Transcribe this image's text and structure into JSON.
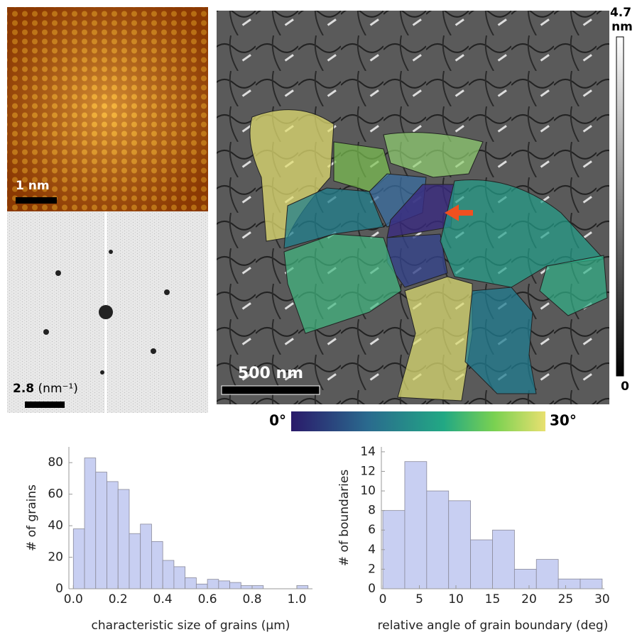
{
  "panels": {
    "atomic_scale_bar": "1 nm",
    "fft_scale_value": "2.8",
    "fft_scale_unit": "(nm⁻¹)",
    "afm_scale_bar": "500 nm",
    "height_bar_max": "4.7",
    "height_bar_unit": "nm",
    "height_bar_min": "0",
    "angle_bar_min": "0°",
    "angle_bar_max": "30°"
  },
  "chart_data": [
    {
      "type": "histogram",
      "xlabel": "characteristic size of grains (μm)",
      "ylabel": "# of grains",
      "bins": [
        0,
        0.05,
        0.1,
        0.15,
        0.2,
        0.25,
        0.3,
        0.35,
        0.4,
        0.45,
        0.5,
        0.55,
        0.6,
        0.65,
        0.7,
        0.75,
        0.8,
        0.85,
        0.9,
        0.95,
        1.0,
        1.05
      ],
      "counts": [
        38,
        83,
        74,
        68,
        63,
        35,
        41,
        30,
        18,
        14,
        7,
        3,
        6,
        5,
        4,
        2,
        2,
        0,
        0,
        0,
        2
      ],
      "color": "#c8cff2",
      "xlim": [
        -0.02,
        1.07
      ],
      "ylim": [
        0,
        90
      ],
      "xticks": [
        {
          "value": 0,
          "label": "0.0"
        },
        0.2,
        0.4,
        0.6,
        0.8,
        {
          "value": 1,
          "label": "1.0"
        }
      ],
      "yticks": [
        0,
        20,
        40,
        60,
        80
      ]
    },
    {
      "type": "histogram",
      "xlabel": "relative angle of grain boundary (deg)",
      "ylabel": "# of boundaries",
      "bins": [
        0,
        3,
        6,
        9,
        12,
        15,
        18,
        21,
        24,
        27,
        30
      ],
      "counts": [
        8,
        13,
        10,
        9,
        5,
        6,
        2,
        3,
        1,
        1
      ],
      "color": "#c8cff2",
      "xlim": [
        -0.2,
        30.3
      ],
      "ylim": [
        0,
        14.5
      ],
      "xticks": [
        0,
        5,
        10,
        15,
        20,
        25,
        30
      ],
      "yticks": [
        0,
        2,
        4,
        6,
        8,
        10,
        12,
        14
      ]
    }
  ]
}
